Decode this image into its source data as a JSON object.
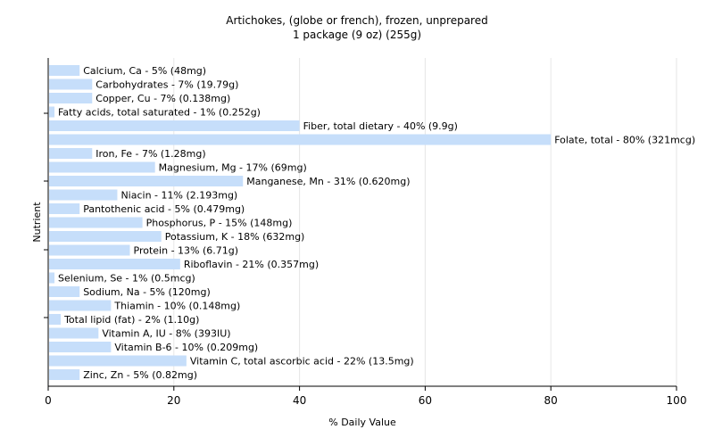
{
  "chart_data": {
    "type": "bar",
    "orientation": "horizontal",
    "title": "Artichokes, (globe or french), frozen, unprepared",
    "subtitle": "1 package (9 oz) (255g)",
    "xlabel": "% Daily Value",
    "ylabel": "Nutrient",
    "xlim": [
      0,
      100
    ],
    "xticks": [
      0,
      20,
      40,
      60,
      80,
      100
    ],
    "grid": true,
    "bar_color": "#c6defa",
    "categories": [
      "Calcium, Ca",
      "Carbohydrates",
      "Copper, Cu",
      "Fatty acids, total saturated",
      "Fiber, total dietary",
      "Folate, total",
      "Iron, Fe",
      "Magnesium, Mg",
      "Manganese, Mn",
      "Niacin",
      "Pantothenic acid",
      "Phosphorus, P",
      "Potassium, K",
      "Protein",
      "Riboflavin",
      "Selenium, Se",
      "Sodium, Na",
      "Thiamin",
      "Total lipid (fat)",
      "Vitamin A, IU",
      "Vitamin B-6",
      "Vitamin C, total ascorbic acid",
      "Zinc, Zn"
    ],
    "values": [
      5,
      7,
      7,
      1,
      40,
      80,
      7,
      17,
      31,
      11,
      5,
      15,
      18,
      13,
      21,
      1,
      5,
      10,
      2,
      8,
      10,
      22,
      5
    ],
    "labels": [
      "Calcium, Ca - 5% (48mg)",
      "Carbohydrates - 7% (19.79g)",
      "Copper, Cu - 7% (0.138mg)",
      "Fatty acids, total saturated - 1% (0.252g)",
      "Fiber, total dietary - 40% (9.9g)",
      "Folate, total - 80% (321mcg)",
      "Iron, Fe - 7% (1.28mg)",
      "Magnesium, Mg - 17% (69mg)",
      "Manganese, Mn - 31% (0.620mg)",
      "Niacin - 11% (2.193mg)",
      "Pantothenic acid - 5% (0.479mg)",
      "Phosphorus, P - 15% (148mg)",
      "Potassium, K - 18% (632mg)",
      "Protein - 13% (6.71g)",
      "Riboflavin - 21% (0.357mg)",
      "Selenium, Se - 1% (0.5mcg)",
      "Sodium, Na - 5% (120mg)",
      "Thiamin - 10% (0.148mg)",
      "Total lipid (fat) - 2% (1.10g)",
      "Vitamin A, IU - 8% (393IU)",
      "Vitamin B-6 - 10% (0.209mg)",
      "Vitamin C, total ascorbic acid - 22% (13.5mg)",
      "Zinc, Zn - 5% (0.82mg)"
    ]
  }
}
